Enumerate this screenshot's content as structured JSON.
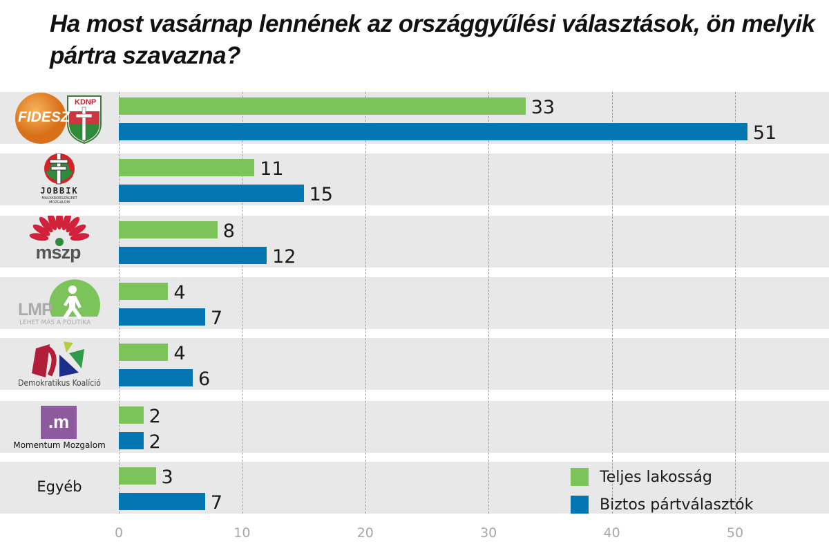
{
  "chart_data": {
    "type": "bar",
    "orientation": "horizontal",
    "title": "Ha most vasárnap lennének az országgyűlési választások, ön melyik pártra szavazna?",
    "categories": [
      "Fidesz–KDNP",
      "Jobbik",
      "MSZP",
      "LMP",
      "Demokratikus Koalíció",
      "Momentum Mozgalom",
      "Egyéb"
    ],
    "series": [
      {
        "name": "Teljes lakosság",
        "color": "#7dc35b",
        "values": [
          33,
          11,
          8,
          4,
          4,
          2,
          3
        ]
      },
      {
        "name": "Biztos pártválasztók",
        "color": "#0477b2",
        "values": [
          51,
          15,
          12,
          7,
          6,
          2,
          7
        ]
      }
    ],
    "xlim": [
      0,
      57
    ],
    "xticks": [
      "0",
      "10",
      "20",
      "30",
      "40",
      "50"
    ],
    "grid": "vertical dashed",
    "legend": "bottom-right"
  },
  "logos": {
    "fidesz": "FIDESZ",
    "kdnp": "KDNP",
    "jobbik": "JOBBIK",
    "jobbik_sub1": "MAGYARORSZÁGÉRT",
    "jobbik_sub2": "MOZGALOM",
    "mszp": "mszp",
    "lmp": "LMP",
    "lmp_sub": "LEHET MÁS A POLITIKA",
    "dk": "Demokratikus Koalíció",
    "momentum_mark": ".m",
    "momentum": "Momentum Mozgalom",
    "other": "Egyéb"
  }
}
